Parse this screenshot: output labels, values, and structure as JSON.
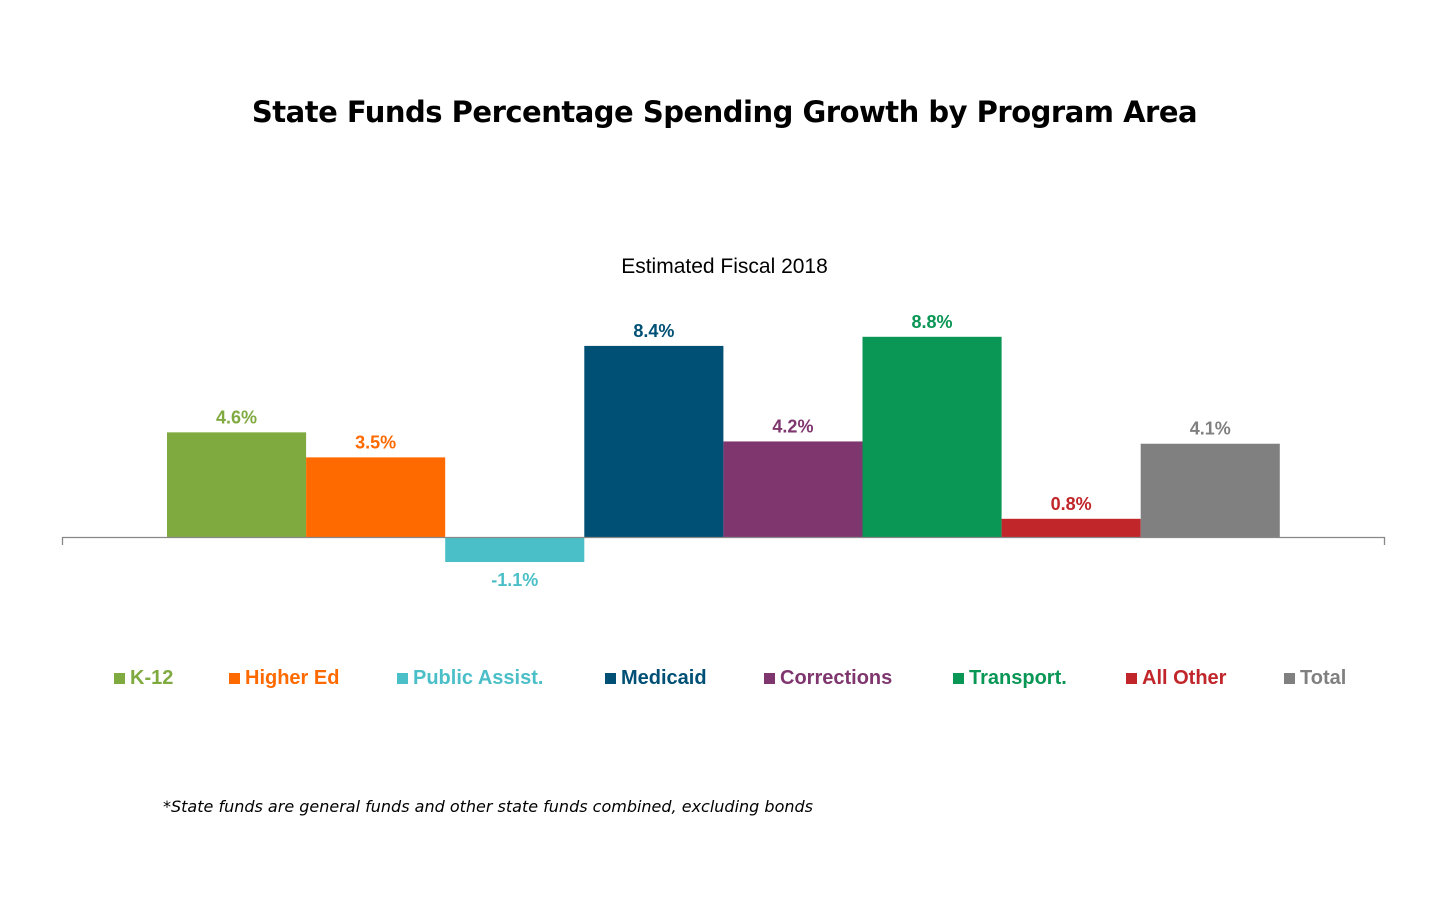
{
  "chart_data": {
    "type": "bar",
    "title": "State Funds Percentage Spending Growth by Program Area",
    "subtitle": "Estimated Fiscal 2018",
    "categories": [
      "K-12",
      "Higher Ed",
      "Public Assist.",
      "Medicaid",
      "Corrections",
      "Transport.",
      "All Other",
      "Total"
    ],
    "values": [
      4.6,
      3.5,
      -1.1,
      8.4,
      4.2,
      8.8,
      0.8,
      4.1
    ],
    "data_labels": [
      "4.6%",
      "3.5%",
      "-1.1%",
      "8.4%",
      "4.2%",
      "8.8%",
      "0.8%",
      "4.1%"
    ],
    "colors": [
      "#7FAA3F",
      "#FF6A00",
      "#4BBFC8",
      "#005075",
      "#7F366E",
      "#0A9655",
      "#C0262A",
      "#808080"
    ],
    "ylim": [
      -1.1,
      8.8
    ],
    "grid": false,
    "y_axis_visible": false,
    "legend_placement": "bottom",
    "xlabel": "",
    "ylabel": ""
  },
  "footnote": "*State funds are general funds and other state funds combined, excluding bonds"
}
